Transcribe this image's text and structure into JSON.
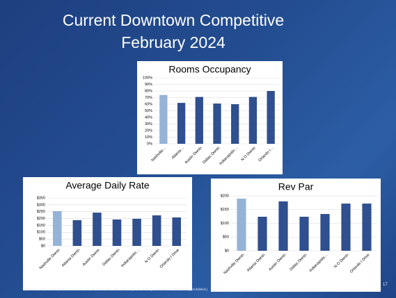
{
  "slide": {
    "title_lines": [
      "Current Downtown Competitive",
      "February 2024"
    ],
    "footnote": "(Source: STR, LLC. Republication or other re-use of this data without the express written permission of STR is strictly prohibited.)",
    "page_number": "17"
  },
  "chart_data": [
    {
      "type": "bar",
      "title": "Rooms Occupancy",
      "categories": [
        "Nashville…",
        "Atlanta…",
        "Austin Dwntn",
        "Dallas Dwntn",
        "Indianapolis…",
        "N O Dwntn",
        "Orlando I…"
      ],
      "values": [
        74,
        62,
        71,
        61,
        60,
        71,
        80
      ],
      "colors": [
        "#95b3d7",
        "#2f4f8f",
        "#2f4f8f",
        "#2f4f8f",
        "#2f4f8f",
        "#2f4f8f",
        "#2f4f8f"
      ],
      "ylim": [
        0,
        100
      ],
      "yticks": [
        {
          "value": 0,
          "label": "0%"
        },
        {
          "value": 10,
          "label": "10%"
        },
        {
          "value": 20,
          "label": "20%"
        },
        {
          "value": 30,
          "label": "30%"
        },
        {
          "value": 40,
          "label": "40%"
        },
        {
          "value": 50,
          "label": "50%"
        },
        {
          "value": 60,
          "label": "60%"
        },
        {
          "value": 70,
          "label": "70%"
        },
        {
          "value": 80,
          "label": "80%"
        },
        {
          "value": 90,
          "label": "90%"
        },
        {
          "value": 100,
          "label": "100%"
        }
      ],
      "grid": true
    },
    {
      "type": "bar",
      "title": "Average Daily  Rate",
      "categories": [
        "Nashville Dwntn",
        "Atlanta Dwntn",
        "Austin Dwntn",
        "Dallas Dwntn",
        "Indianapolis…",
        "N O Dwntn",
        "Orlando I Drive"
      ],
      "values": [
        254,
        188,
        243,
        193,
        198,
        223,
        208
      ],
      "colors": [
        "#95b3d7",
        "#2f4f8f",
        "#2f4f8f",
        "#2f4f8f",
        "#2f4f8f",
        "#2f4f8f",
        "#2f4f8f"
      ],
      "ylim": [
        0,
        350
      ],
      "yticks": [
        {
          "value": 0,
          "label": "$0"
        },
        {
          "value": 50,
          "label": "$50"
        },
        {
          "value": 100,
          "label": "$100"
        },
        {
          "value": 150,
          "label": "$150"
        },
        {
          "value": 200,
          "label": "$200"
        },
        {
          "value": 250,
          "label": "$250"
        },
        {
          "value": 300,
          "label": "$300"
        },
        {
          "value": 350,
          "label": "$350"
        }
      ],
      "grid": true
    },
    {
      "type": "bar",
      "title": "Rev Par",
      "categories": [
        "Nashville Dwntn",
        "Atlanta Dwntn",
        "Austin Dwntn",
        "Dallas Dwntn",
        "Indianapolis…",
        "N O Dwntn",
        "Orlando I Drive"
      ],
      "values": [
        190,
        124,
        180,
        124,
        134,
        172,
        172
      ],
      "colors": [
        "#95b3d7",
        "#2f4f8f",
        "#2f4f8f",
        "#2f4f8f",
        "#2f4f8f",
        "#2f4f8f",
        "#2f4f8f"
      ],
      "ylim": [
        0,
        200
      ],
      "yticks": [
        {
          "value": 0,
          "label": "$0"
        },
        {
          "value": 50,
          "label": "$50"
        },
        {
          "value": 100,
          "label": "$100"
        },
        {
          "value": 150,
          "label": "$150"
        },
        {
          "value": 200,
          "label": "$200"
        }
      ],
      "grid": true
    }
  ]
}
